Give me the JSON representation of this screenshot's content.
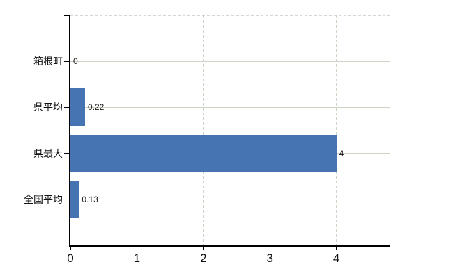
{
  "chart_data": {
    "type": "bar",
    "orientation": "horizontal",
    "title": "",
    "xlabel": "",
    "ylabel": "",
    "categories": [
      "箱根町",
      "県平均",
      "県最大",
      "全国平均"
    ],
    "values": [
      0,
      0.22,
      4,
      0.13
    ],
    "data_labels": [
      "0",
      "0.22",
      "4",
      "0.13"
    ],
    "x_ticks": [
      "0",
      "1",
      "2",
      "3",
      "4"
    ],
    "x_tick_values": [
      0,
      1,
      2,
      3,
      4
    ],
    "xlim": [
      0,
      4.8
    ],
    "legend": "none",
    "grid": {
      "vertical_style": "dashed",
      "horizontal_style": "solid",
      "top_border_style": "dashed"
    },
    "colors": {
      "bar": "#4674b2",
      "gridline": "#ccd4c6",
      "top_border": "#d7d3d7",
      "axis": "#000000",
      "text": "#111111",
      "background": "#ffffff"
    }
  }
}
